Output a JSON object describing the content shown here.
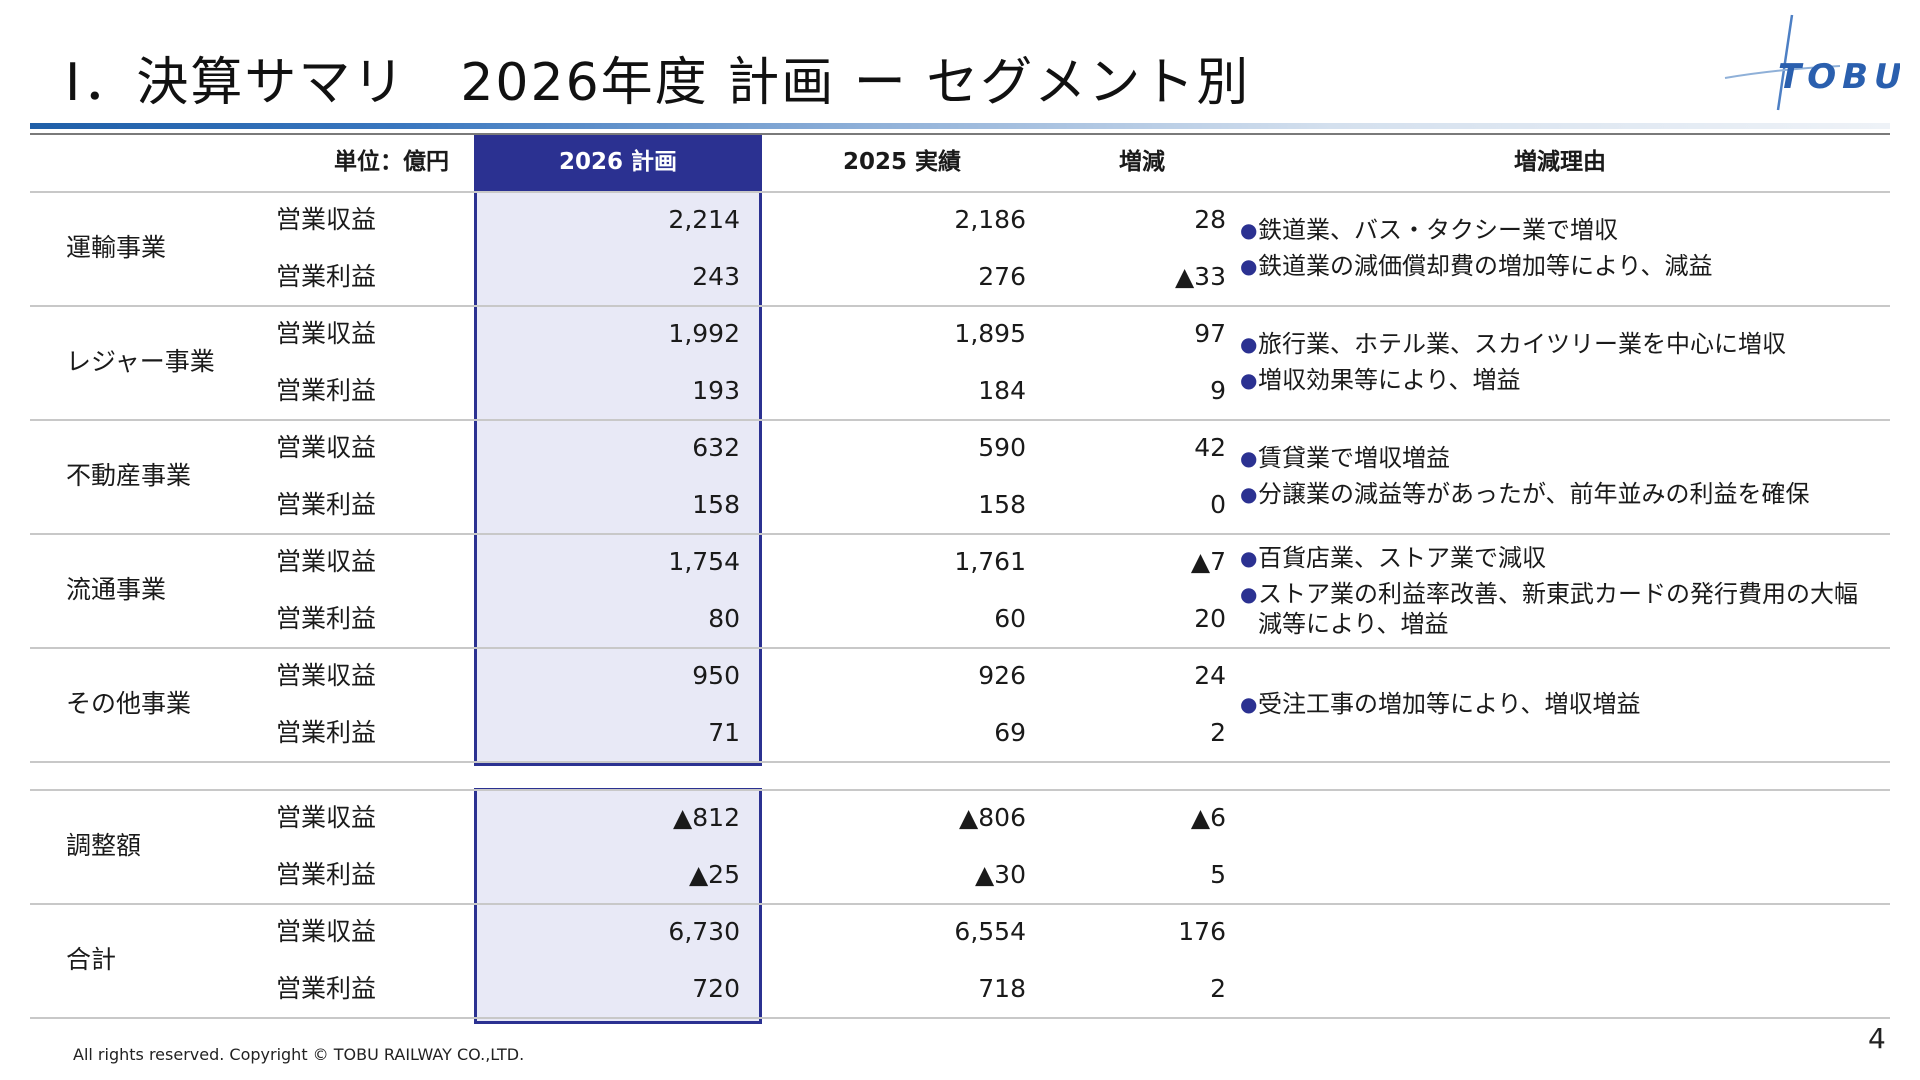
{
  "title": "Ⅰ．決算サマリ　2026年度 計画 ー セグメント別",
  "logo_text": "TOBU",
  "header": {
    "unit": "単位：億円",
    "plan": "2026 計画",
    "actual": "2025 実績",
    "diff": "増減",
    "reason": "増減理由"
  },
  "segments": [
    {
      "name": "運輸事業",
      "rows": [
        {
          "label": "営業収益",
          "plan": "2,214",
          "actual": "2,186",
          "diff": "28"
        },
        {
          "label": "営業利益",
          "plan": "243",
          "actual": "276",
          "diff": "▲33"
        }
      ],
      "reasons": [
        "鉄道業、バス・タクシー業で増収",
        "鉄道業の減価償却費の増加等により、減益"
      ]
    },
    {
      "name": "レジャー事業",
      "rows": [
        {
          "label": "営業収益",
          "plan": "1,992",
          "actual": "1,895",
          "diff": "97"
        },
        {
          "label": "営業利益",
          "plan": "193",
          "actual": "184",
          "diff": "9"
        }
      ],
      "reasons": [
        "旅行業、ホテル業、スカイツリー業を中心に増収",
        "増収効果等により、増益"
      ]
    },
    {
      "name": "不動産事業",
      "rows": [
        {
          "label": "営業収益",
          "plan": "632",
          "actual": "590",
          "diff": "42"
        },
        {
          "label": "営業利益",
          "plan": "158",
          "actual": "158",
          "diff": "0"
        }
      ],
      "reasons": [
        "賃貸業で増収増益",
        "分譲業の減益等があったが、前年並みの利益を確保"
      ]
    },
    {
      "name": "流通事業",
      "rows": [
        {
          "label": "営業収益",
          "plan": "1,754",
          "actual": "1,761",
          "diff": "▲7"
        },
        {
          "label": "営業利益",
          "plan": "80",
          "actual": "60",
          "diff": "20"
        }
      ],
      "reasons": [
        "百貨店業、ストア業で減収",
        "ストア業の利益率改善、新東武カードの発行費用の大幅減等により、増益"
      ]
    },
    {
      "name": "その他事業",
      "rows": [
        {
          "label": "営業収益",
          "plan": "950",
          "actual": "926",
          "diff": "24"
        },
        {
          "label": "営業利益",
          "plan": "71",
          "actual": "69",
          "diff": "2"
        }
      ],
      "reasons": [
        "受注工事の増加等により、増収増益"
      ]
    },
    {
      "name": "調整額",
      "rows": [
        {
          "label": "営業収益",
          "plan": "▲812",
          "actual": "▲806",
          "diff": "▲6"
        },
        {
          "label": "営業利益",
          "plan": "▲25",
          "actual": "▲30",
          "diff": "5"
        }
      ],
      "reasons": []
    },
    {
      "name": "合計",
      "rows": [
        {
          "label": "営業収益",
          "plan": "6,730",
          "actual": "6,554",
          "diff": "176"
        },
        {
          "label": "営業利益",
          "plan": "720",
          "actual": "718",
          "diff": "2"
        }
      ],
      "reasons": []
    }
  ],
  "footer": "All rights reserved. Copyright © TOBU RAILWAY CO.,LTD.",
  "page_number": "4",
  "colors": {
    "plan_header": "#2b3191",
    "plan_fill": "#e8e9f6",
    "title_bar": "#1f5fa8",
    "logo": "#2a5fae"
  }
}
